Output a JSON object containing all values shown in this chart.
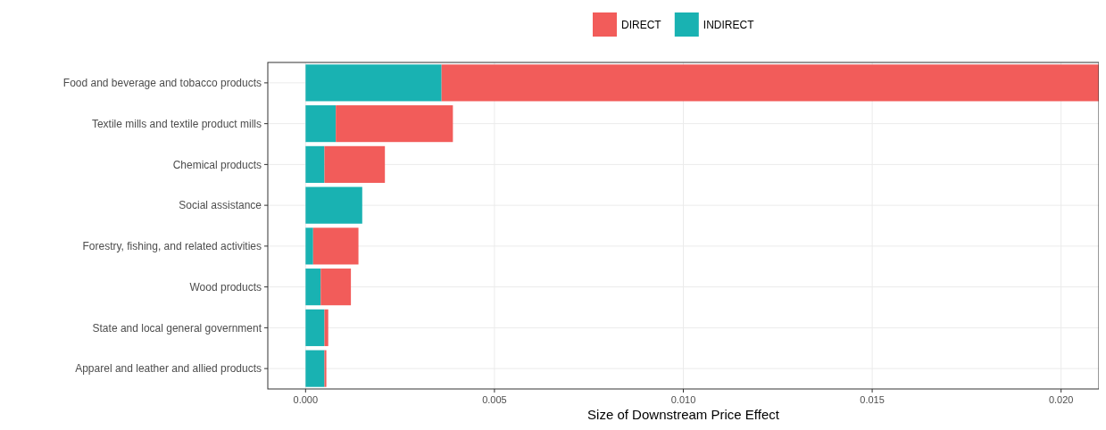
{
  "chart_data": {
    "type": "bar",
    "orientation": "horizontal",
    "stacked": true,
    "xlabel": "Size of Downstream Price Effect",
    "categories": [
      "Food and beverage and tobacco products",
      "Textile mills and textile product mills",
      "Chemical products",
      "Social assistance",
      "Forestry, fishing, and related activities",
      "Wood products",
      "State and local general government",
      "Apparel and leather and allied products"
    ],
    "series": [
      {
        "name": "INDIRECT",
        "color": "#19b2b2",
        "values": [
          0.0036,
          0.0008,
          0.0005,
          0.0015,
          0.0002,
          0.0004,
          0.0005,
          0.0005
        ]
      },
      {
        "name": "DIRECT",
        "color": "#f25c5a",
        "values": [
          0.0174,
          0.0031,
          0.0016,
          0,
          0.0012,
          0.0008,
          0.0001,
          5e-05
        ]
      }
    ],
    "xlim": [
      -0.001,
      0.021
    ],
    "xticks": [
      {
        "value": 0,
        "label": "0.000"
      },
      {
        "value": 0.005,
        "label": "0.005"
      },
      {
        "value": 0.01,
        "label": "0.010"
      },
      {
        "value": 0.015,
        "label": "0.015"
      },
      {
        "value": 0.02,
        "label": "0.020"
      }
    ],
    "grid": true,
    "legend": "top"
  }
}
